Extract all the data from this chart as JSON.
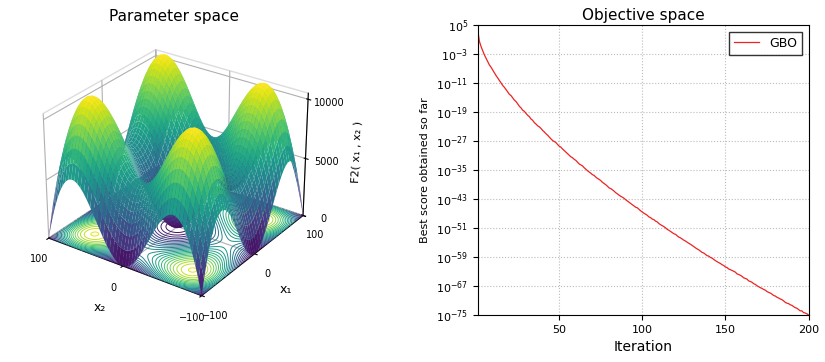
{
  "left_title": "Parameter space",
  "right_title": "Objective space",
  "xlabel_3d": "x₁",
  "ylabel_3d": "x₂",
  "zlabel_3d": "F2( x₁ , x₂ )",
  "x_range": [
    -100,
    100
  ],
  "y_range": [
    -100,
    100
  ],
  "right_xlabel": "Iteration",
  "right_ylabel": "Best score obtained so far",
  "legend_label": "GBO",
  "line_color": "#ee2222",
  "background_color": "#ffffff",
  "iter_max": 200,
  "grid_color": "#bbbbbb",
  "grid_style": ":"
}
